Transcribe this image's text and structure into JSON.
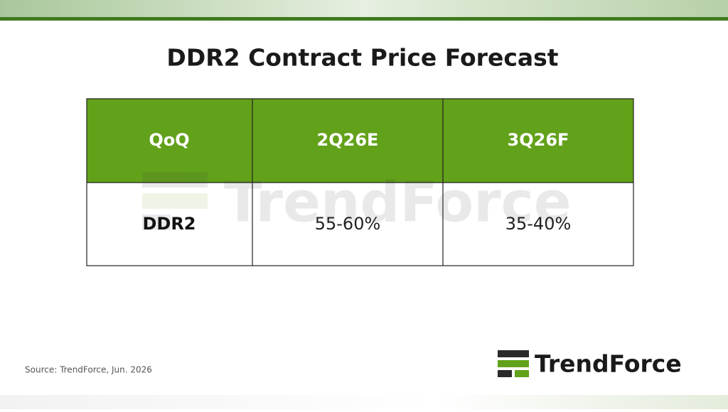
{
  "title": "DDR2 Contract Price Forecast",
  "table": {
    "header": [
      "QoQ",
      "2Q26E",
      "3Q26F"
    ],
    "rows": [
      [
        "DDR2",
        "55-60%",
        "35-40%"
      ]
    ]
  },
  "source": "Source: TrendForce, Jun. 2026",
  "brand": "TrendForce"
}
